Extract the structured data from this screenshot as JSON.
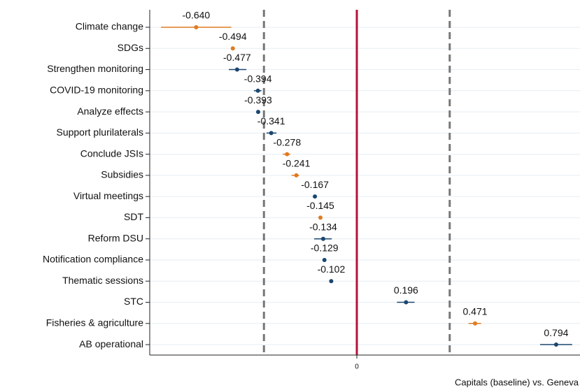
{
  "chart_data": {
    "type": "dot",
    "categories": [
      "Climate change",
      "SDGs",
      "Strengthen monitoring",
      "COVID-19 monitoring",
      "Analyze effects",
      "Support plurilaterals",
      "Conclude JSIs",
      "Subsidies",
      "Virtual meetings",
      "SDT",
      "Reform DSU",
      "Notification compliance",
      "Thematic sessions",
      "STC",
      "Fisheries & agriculture",
      "AB operational"
    ],
    "values": [
      -0.64,
      -0.494,
      -0.477,
      -0.394,
      -0.393,
      -0.341,
      -0.278,
      -0.241,
      -0.167,
      -0.145,
      -0.134,
      -0.129,
      -0.102,
      0.196,
      0.471,
      0.794
    ],
    "value_labels": [
      "-0.640",
      "-0.494",
      "-0.477",
      "-0.394",
      "-0.393",
      "-0.341",
      "-0.278",
      "-0.241",
      "-0.167",
      "-0.145",
      "-0.134",
      "-0.129",
      "-0.102",
      "0.196",
      "0.471",
      "0.794"
    ],
    "ci": [
      [
        -0.78,
        -0.5
      ],
      null,
      [
        -0.51,
        -0.44
      ],
      [
        -0.41,
        -0.38
      ],
      null,
      [
        -0.36,
        -0.32
      ],
      [
        -0.295,
        -0.265
      ],
      [
        -0.26,
        -0.23
      ],
      null,
      null,
      [
        -0.17,
        -0.1
      ],
      null,
      null,
      [
        0.16,
        0.23
      ],
      [
        0.445,
        0.495
      ],
      [
        0.73,
        0.858
      ]
    ],
    "colors": [
      "#e07b20",
      "#e07b20",
      "#1a476f",
      "#1a476f",
      "#1a476f",
      "#1a476f",
      "#e07b20",
      "#e07b20",
      "#1a476f",
      "#e07b20",
      "#1a476f",
      "#1a476f",
      "#1a476f",
      "#1a476f",
      "#e07b20",
      "#1a476f"
    ],
    "xlim": [
      -0.825,
      0.889
    ],
    "xticks": [
      0
    ],
    "zero_line_color": "#b5123a",
    "reference_lines": [
      -0.37,
      0.37
    ],
    "xlabel": "Capitals (baseline) vs. Geneva",
    "grid": true
  }
}
